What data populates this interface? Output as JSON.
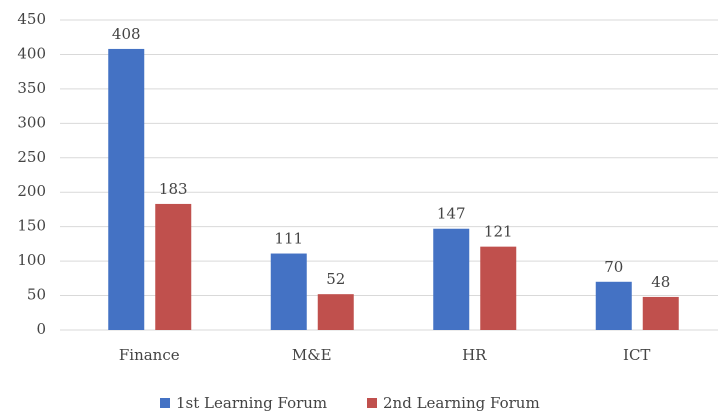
{
  "chart_data": {
    "type": "bar",
    "categories": [
      "Finance",
      "M&E",
      "HR",
      "ICT"
    ],
    "series": [
      {
        "name": "1st Learning Forum",
        "color": "#4472c4",
        "values": [
          408,
          111,
          147,
          70
        ]
      },
      {
        "name": "2nd Learning Forum",
        "color": "#c0504d",
        "values": [
          183,
          52,
          121,
          48
        ]
      }
    ],
    "ylim": [
      0,
      450
    ],
    "yticks": [
      0,
      50,
      100,
      150,
      200,
      250,
      300,
      350,
      400,
      450
    ],
    "grid": true,
    "legend": "bottom"
  }
}
